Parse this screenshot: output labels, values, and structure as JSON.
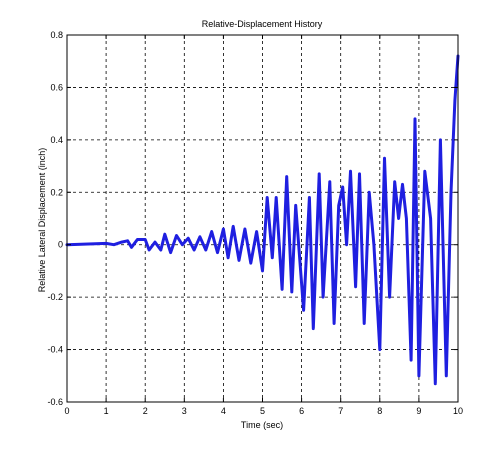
{
  "chart_data": {
    "type": "line",
    "title": "Relative-Displacement History",
    "xlabel": "Time (sec)",
    "ylabel": "Relative Lateral Displacement (inch)",
    "xlim": [
      0,
      10
    ],
    "ylim": [
      -0.6,
      0.8
    ],
    "xticks": [
      0,
      1,
      2,
      3,
      4,
      5,
      6,
      7,
      8,
      9,
      10
    ],
    "yticks": [
      -0.6,
      -0.4,
      -0.2,
      0,
      0.2,
      0.4,
      0.6,
      0.8
    ],
    "xtick_labels": [
      "0",
      "1",
      "2",
      "3",
      "4",
      "5",
      "6",
      "7",
      "8",
      "9",
      "10"
    ],
    "ytick_labels": [
      "-0.6",
      "-0.4",
      "-0.2",
      "0",
      "0.2",
      "0.4",
      "0.6",
      "0.8"
    ],
    "grid": true,
    "line_color": "#1f1fe0",
    "series": [
      {
        "x": [
          0,
          1.0,
          1.2,
          1.4,
          1.55,
          1.65,
          1.8,
          2.0,
          2.1,
          2.25,
          2.4,
          2.5,
          2.65,
          2.8,
          2.95,
          3.1,
          3.25,
          3.4,
          3.55,
          3.7,
          3.85,
          4.0,
          4.12,
          4.25,
          4.4,
          4.55,
          4.7,
          4.85,
          5.0,
          5.12,
          5.25,
          5.35,
          5.5,
          5.62,
          5.75,
          5.85,
          6.05,
          6.2,
          6.3,
          6.45,
          6.55,
          6.72,
          6.83,
          6.95,
          7.05,
          7.15,
          7.25,
          7.38,
          7.48,
          7.6,
          7.73,
          7.85,
          8.0,
          8.12,
          8.25,
          8.38,
          8.48,
          8.58,
          8.68,
          8.8,
          8.9,
          9.0,
          9.15,
          9.3,
          9.42,
          9.55,
          9.7,
          9.82,
          9.92,
          10.0
        ],
        "y": [
          0,
          0.005,
          0.0,
          0.01,
          0.015,
          -0.01,
          0.02,
          0.02,
          -0.02,
          0.01,
          -0.02,
          0.04,
          -0.03,
          0.035,
          0.0,
          0.025,
          -0.02,
          0.03,
          -0.02,
          0.05,
          -0.03,
          0.06,
          -0.05,
          0.07,
          -0.06,
          0.06,
          -0.07,
          0.05,
          -0.1,
          0.18,
          -0.05,
          0.18,
          -0.17,
          0.26,
          -0.18,
          0.15,
          -0.25,
          0.18,
          -0.32,
          0.27,
          -0.2,
          0.24,
          -0.3,
          0.15,
          0.22,
          0.0,
          0.28,
          -0.16,
          0.27,
          -0.3,
          0.2,
          0.0,
          -0.4,
          0.33,
          -0.2,
          0.24,
          0.1,
          0.23,
          0.1,
          -0.44,
          0.48,
          -0.5,
          0.28,
          0.1,
          -0.53,
          0.4,
          -0.5,
          0.2,
          0.55,
          0.72
        ]
      }
    ]
  }
}
